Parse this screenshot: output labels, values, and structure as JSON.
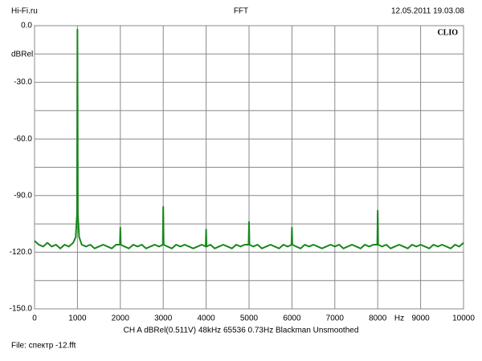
{
  "chart_data": {
    "type": "line",
    "header_left": "Hi-Fi.ru",
    "title": "FFT",
    "header_right": "12.05.2011 19.03.08",
    "brand": "CLIO",
    "ylabel": "dBRel",
    "x_unit": "Hz",
    "footer": "CH A   dBRel(0.511V)   48kHz   65536   0.73Hz   Blackman   Unsmoothed",
    "file": "File: спектр -12.fft",
    "xlim": [
      0,
      10000
    ],
    "ylim": [
      -150,
      0
    ],
    "xticks": [
      0,
      1000,
      2000,
      3000,
      4000,
      5000,
      6000,
      7000,
      8000,
      9000,
      10000
    ],
    "yticks": [
      {
        "value": 0,
        "label": "0.0"
      },
      {
        "value": -30,
        "label": "-30.0"
      },
      {
        "value": -60,
        "label": "-60.0"
      },
      {
        "value": -90,
        "label": "-90.0"
      },
      {
        "value": -120,
        "label": "-120.0"
      },
      {
        "value": -150,
        "label": "-150.0"
      }
    ],
    "minor_yticks": [
      -15,
      -45,
      -75,
      -105,
      -135
    ],
    "grid": true,
    "series": [
      {
        "color": "#17871c",
        "x": [
          0,
          100,
          200,
          300,
          400,
          500,
          600,
          700,
          800,
          900,
          960,
          990,
          1000,
          1010,
          1040,
          1100,
          1200,
          1300,
          1400,
          1500,
          1600,
          1700,
          1800,
          1900,
          1990,
          2000,
          2010,
          2100,
          2200,
          2300,
          2400,
          2500,
          2600,
          2700,
          2800,
          2900,
          2990,
          3000,
          3010,
          3100,
          3200,
          3300,
          3400,
          3500,
          3600,
          3700,
          3800,
          3900,
          3990,
          4000,
          4010,
          4100,
          4200,
          4300,
          4400,
          4500,
          4600,
          4700,
          4800,
          4900,
          4990,
          5000,
          5010,
          5100,
          5200,
          5300,
          5400,
          5500,
          5600,
          5700,
          5800,
          5900,
          5990,
          6000,
          6010,
          6100,
          6200,
          6300,
          6400,
          6500,
          6600,
          6700,
          6800,
          6900,
          7000,
          7100,
          7200,
          7300,
          7400,
          7500,
          7600,
          7700,
          7800,
          7900,
          7990,
          8000,
          8010,
          8100,
          8200,
          8300,
          8400,
          8500,
          8600,
          8700,
          8800,
          8900,
          9000,
          9100,
          9200,
          9300,
          9400,
          9500,
          9600,
          9700,
          9800,
          9900,
          10000
        ],
        "values": [
          -114,
          -116,
          -117,
          -115,
          -117,
          -116,
          -118,
          -116,
          -117,
          -115,
          -112,
          -100,
          -2,
          -100,
          -112,
          -116,
          -117,
          -116,
          -118,
          -117,
          -116,
          -117,
          -118,
          -116,
          -116,
          -107,
          -116,
          -117,
          -118,
          -116,
          -117,
          -116,
          -118,
          -117,
          -116,
          -117,
          -116,
          -96,
          -116,
          -117,
          -118,
          -116,
          -117,
          -116,
          -117,
          -118,
          -117,
          -116,
          -117,
          -108,
          -117,
          -116,
          -118,
          -117,
          -116,
          -117,
          -118,
          -116,
          -117,
          -116,
          -116,
          -104,
          -116,
          -117,
          -116,
          -118,
          -117,
          -116,
          -117,
          -118,
          -116,
          -117,
          -116,
          -107,
          -116,
          -117,
          -118,
          -116,
          -117,
          -116,
          -117,
          -118,
          -117,
          -116,
          -117,
          -116,
          -118,
          -117,
          -116,
          -117,
          -118,
          -116,
          -117,
          -116,
          -116,
          -98,
          -116,
          -117,
          -116,
          -118,
          -117,
          -116,
          -117,
          -118,
          -116,
          -117,
          -116,
          -117,
          -118,
          -116,
          -117,
          -116,
          -117,
          -118,
          -116,
          -117,
          -115
        ]
      }
    ]
  }
}
